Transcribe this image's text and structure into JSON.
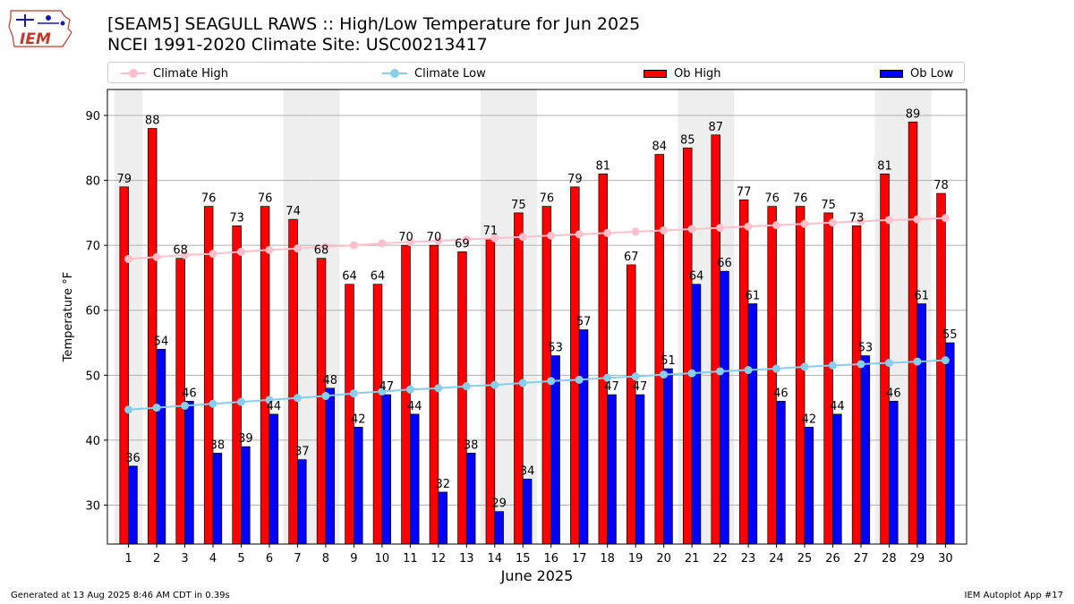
{
  "logo": {
    "text": "IEM"
  },
  "title_line1": "[SEAM5] SEAGULL RAWS :: High/Low Temperature for Jun 2025",
  "title_line2": "NCEI 1991-2020 Climate Site: USC00213417",
  "legend": {
    "climate_high": "Climate High",
    "climate_low": "Climate Low",
    "ob_high": "Ob High",
    "ob_low": "Ob Low"
  },
  "footer_left": "Generated at 13 Aug 2025 8:46 AM CDT in 0.39s",
  "footer_right": "IEM Autoplot App #17",
  "colors": {
    "ob_high": "#ff0000",
    "ob_low": "#0000ff",
    "climate_high": "#ffc0cb",
    "climate_low": "#87ceeb",
    "weekend_shade": "#eeeeee",
    "grid": "#b0b0b0"
  },
  "chart_data": {
    "type": "bar",
    "xlabel": "June 2025",
    "ylabel": "Temperature °F",
    "ylim": [
      24,
      94
    ],
    "yticks": [
      30,
      40,
      50,
      60,
      70,
      80,
      90
    ],
    "grid": "horizontal",
    "legend_position": "top",
    "categories": [
      "1",
      "2",
      "3",
      "4",
      "5",
      "6",
      "7",
      "8",
      "9",
      "10",
      "11",
      "12",
      "13",
      "14",
      "15",
      "16",
      "17",
      "18",
      "19",
      "20",
      "21",
      "22",
      "23",
      "24",
      "25",
      "26",
      "27",
      "28",
      "29",
      "30"
    ],
    "shaded_days": [
      1,
      7,
      8,
      14,
      15,
      21,
      22,
      28,
      29
    ],
    "series": [
      {
        "name": "Ob High",
        "kind": "bar",
        "values": [
          79,
          88,
          68,
          76,
          73,
          76,
          74,
          68,
          64,
          64,
          70,
          70,
          69,
          71,
          75,
          76,
          79,
          81,
          67,
          84,
          85,
          87,
          77,
          76,
          76,
          75,
          73,
          81,
          89,
          78
        ]
      },
      {
        "name": "Ob Low",
        "kind": "bar",
        "values": [
          36,
          54,
          46,
          38,
          39,
          44,
          37,
          48,
          42,
          47,
          44,
          32,
          38,
          29,
          34,
          53,
          57,
          47,
          47,
          51,
          64,
          66,
          61,
          46,
          42,
          44,
          53,
          46,
          61,
          55
        ]
      },
      {
        "name": "Climate High",
        "kind": "line",
        "values": [
          67.9,
          68.2,
          68.5,
          68.7,
          69.0,
          69.3,
          69.5,
          69.8,
          70.0,
          70.3,
          70.5,
          70.7,
          70.9,
          71.1,
          71.3,
          71.5,
          71.7,
          71.9,
          72.1,
          72.3,
          72.5,
          72.7,
          72.9,
          73.1,
          73.3,
          73.5,
          73.7,
          73.9,
          74.0,
          74.2
        ]
      },
      {
        "name": "Climate Low",
        "kind": "line",
        "values": [
          44.7,
          45.0,
          45.3,
          45.6,
          45.9,
          46.2,
          46.5,
          46.8,
          47.2,
          47.5,
          47.8,
          48.0,
          48.3,
          48.5,
          48.8,
          49.1,
          49.3,
          49.6,
          49.8,
          50.1,
          50.3,
          50.6,
          50.8,
          51.0,
          51.3,
          51.5,
          51.7,
          51.9,
          52.1,
          52.3
        ]
      }
    ]
  }
}
